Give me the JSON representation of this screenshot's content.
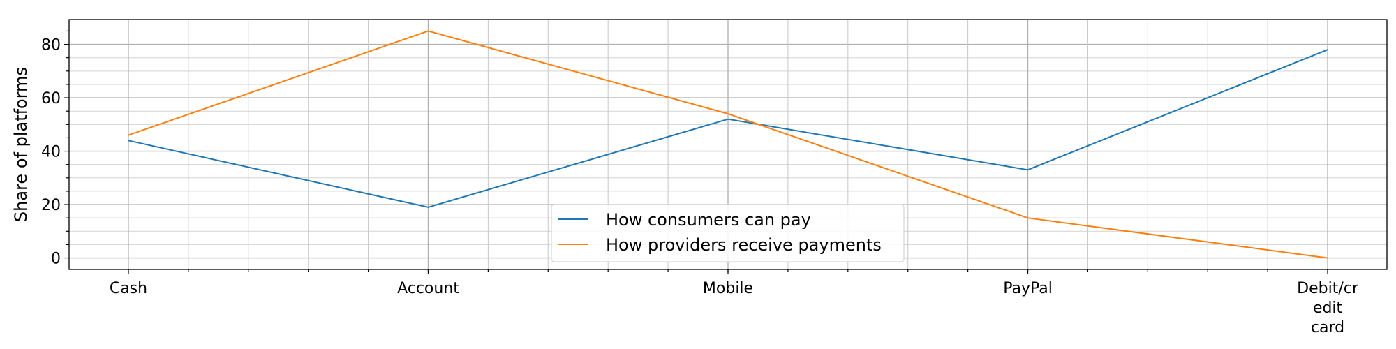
{
  "chart_data": {
    "type": "line",
    "categories": [
      "Cash",
      "Account",
      "Mobile",
      "PayPal",
      "Debit/credit card"
    ],
    "category_label_lines": [
      [
        "Cash"
      ],
      [
        "Account"
      ],
      [
        "Mobile"
      ],
      [
        "PayPal"
      ],
      [
        "Debit/cr",
        "edit",
        "card"
      ]
    ],
    "series": [
      {
        "name": "How consumers can pay",
        "values": [
          44,
          19,
          52,
          33,
          78
        ],
        "color": "#1f77b4"
      },
      {
        "name": "How providers receive payments",
        "values": [
          46,
          85,
          54,
          15,
          0
        ],
        "color": "#ff7f0e"
      }
    ],
    "xlabel": "",
    "ylabel": "Share of platforms",
    "ylim": [
      -4.3,
      89.3
    ],
    "y_ticks": [
      0,
      20,
      40,
      60,
      80
    ],
    "y_minor_step": 5,
    "x_minor_per_category": 5,
    "grid": "major and minor, both axes",
    "legend_position": "lower-center"
  }
}
